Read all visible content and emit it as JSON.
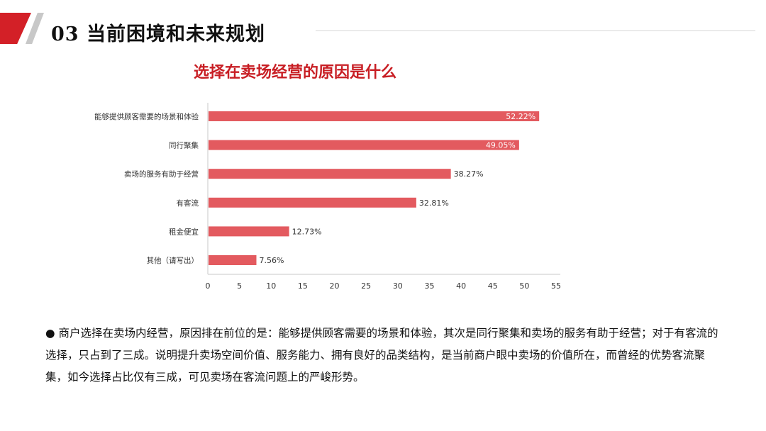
{
  "header": {
    "title": "03 当前困境和未来规划"
  },
  "chart_data": {
    "type": "bar",
    "orientation": "horizontal",
    "title": "选择在卖场经营的原因是什么",
    "categories": [
      "能够提供顾客需要的场景和体验",
      "同行聚集",
      "卖场的服务有助于经营",
      "有客流",
      "租金便宜",
      "其他（请写出）"
    ],
    "values": [
      52.22,
      49.05,
      38.27,
      32.81,
      12.73,
      7.56
    ],
    "data_labels": [
      "52.22%",
      "49.05%",
      "38.27%",
      "32.81%",
      "12.73%",
      "7.56%"
    ],
    "xlim": [
      0,
      55
    ],
    "xticks": [
      "0",
      "5",
      "10",
      "15",
      "20",
      "25",
      "30",
      "35",
      "40",
      "45",
      "50",
      "55"
    ],
    "xlabel": "",
    "ylabel": "",
    "grid": false,
    "bar_color": "#e35a5f"
  },
  "summary": {
    "text": "● 商户选择在卖场内经营，原因排在前位的是：能够提供顾客需要的场景和体验，其次是同行聚集和卖场的服务有助于经营；对于有客流的选择，只占到了三成。说明提升卖场空间价值、服务能力、拥有良好的品类结构，是当前商户眼中卖场的价值所在，而曾经的优势客流聚集，如今选择占比仅有三成，可见卖场在客流问题上的严峻形势。"
  }
}
